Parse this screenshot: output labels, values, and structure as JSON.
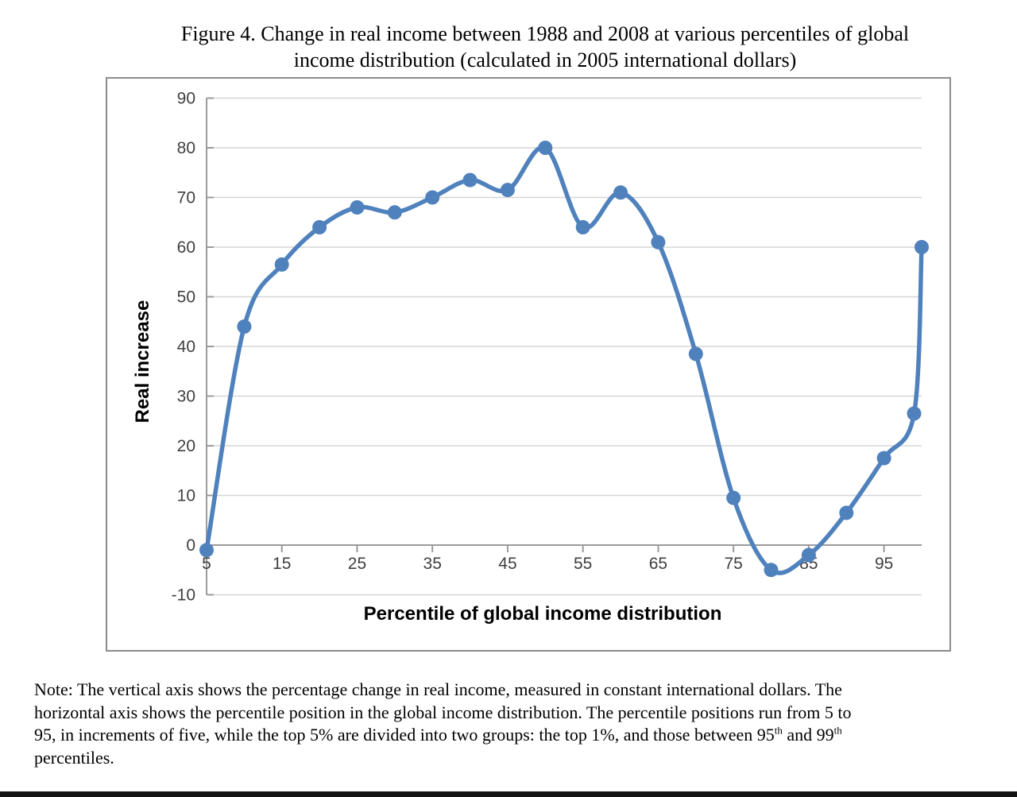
{
  "figure": {
    "title_line1": "Figure 4. Change in real income between 1988 and 2008 at various percentiles of global",
    "title_line2": "income distribution (calculated in 2005 international dollars)"
  },
  "chart_data": {
    "type": "line",
    "title": "Figure 4. Change in real income between 1988 and 2008 at various percentiles of global income distribution (calculated in 2005 international dollars)",
    "xlabel": "Percentile of global income distribution",
    "ylabel": "Real increase",
    "x": [
      5,
      10,
      15,
      20,
      25,
      30,
      35,
      40,
      45,
      50,
      55,
      60,
      65,
      70,
      75,
      80,
      85,
      90,
      95,
      99,
      100
    ],
    "y": [
      -1,
      44,
      56.5,
      64,
      68,
      67,
      70,
      73.5,
      71.5,
      80,
      64,
      71,
      61,
      38.5,
      9.5,
      -5,
      -2,
      6.5,
      17.5,
      26.5,
      60
    ],
    "x_tick_labels": [
      5,
      15,
      25,
      35,
      45,
      55,
      65,
      75,
      85,
      95
    ],
    "y_tick_labels": [
      -10,
      0,
      10,
      20,
      30,
      40,
      50,
      60,
      70,
      80,
      90
    ],
    "xlim": [
      5,
      100
    ],
    "ylim": [
      -10,
      90
    ],
    "grid": "horizontal",
    "legend": "none",
    "marker": "circle",
    "smoothed": true,
    "colors": {
      "line": "#4F81BD",
      "marker": "#4F81BD",
      "gridline": "#D6D6D6",
      "axis": "#9B9B9B",
      "tick_label": "#3F3F3F",
      "axis_title": "#000000",
      "frame_border": "#8C8C8C"
    }
  },
  "note": {
    "line1": "Note: The vertical axis shows the percentage change in real income, measured in constant international dollars. The",
    "line2": "horizontal axis shows the percentile position in the global income distribution. The percentile positions run from 5 to",
    "line3_pre": "95, in increments of five, while the top 5% are divided into two groups: the top 1%, and those between 95",
    "line3_sup1": "th",
    "line3_mid": " and 99",
    "line3_sup2": "th",
    "line4": "percentiles."
  }
}
